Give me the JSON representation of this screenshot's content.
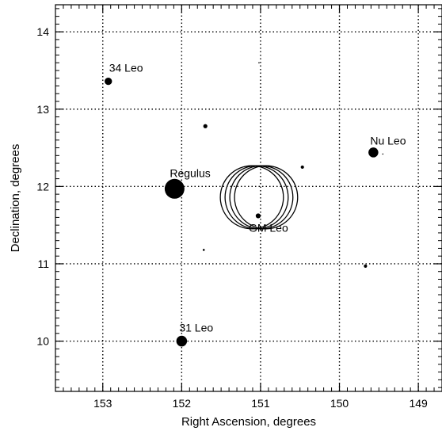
{
  "chart_data": {
    "type": "scatter",
    "title": "",
    "xlabel": "Right Ascension, degrees",
    "ylabel": "Declination, degrees",
    "xlim": [
      153.6,
      148.7
    ],
    "ylim": [
      9.35,
      14.35
    ],
    "x_reversed": true,
    "x_ticks": [
      153,
      152,
      151,
      150,
      149
    ],
    "y_ticks": [
      10,
      11,
      12,
      13,
      14
    ],
    "grid": true,
    "grid_style": "dotted",
    "colors": {
      "marker": "#000000",
      "grid": "#000000",
      "background": "#ffffff"
    },
    "stars": [
      {
        "label": "34 Leo",
        "ra": 152.93,
        "dec": 13.36,
        "size": 1.8
      },
      {
        "label": "Regulus",
        "ra": 152.09,
        "dec": 11.97,
        "size": 4.8
      },
      {
        "label": "31 Leo",
        "ra": 152.0,
        "dec": 10.0,
        "size": 2.6
      },
      {
        "label": "Nu Leo",
        "ra": 149.57,
        "dec": 12.44,
        "size": 2.4
      },
      {
        "label": "GM Leo",
        "ra": 151.03,
        "dec": 11.62,
        "size": 1.2
      },
      {
        "label": "",
        "ra": 151.7,
        "dec": 12.78,
        "size": 1.0
      },
      {
        "label": "",
        "ra": 150.47,
        "dec": 12.25,
        "size": 0.8
      },
      {
        "label": "",
        "ra": 149.67,
        "dec": 10.97,
        "size": 0.8
      },
      {
        "label": "",
        "ra": 151.72,
        "dec": 11.18,
        "size": 0.5
      },
      {
        "label": "",
        "ra": 151.02,
        "dec": 13.6,
        "size": 0.3
      },
      {
        "label": "",
        "ra": 149.45,
        "dec": 12.42,
        "size": 0.3
      }
    ],
    "error_circles": [
      {
        "ra": 151.11,
        "dec": 11.86,
        "radius": 0.4
      },
      {
        "ra": 151.05,
        "dec": 11.86,
        "radius": 0.4
      },
      {
        "ra": 150.99,
        "dec": 11.86,
        "radius": 0.4
      },
      {
        "ra": 150.93,
        "dec": 11.86,
        "radius": 0.4
      }
    ]
  }
}
